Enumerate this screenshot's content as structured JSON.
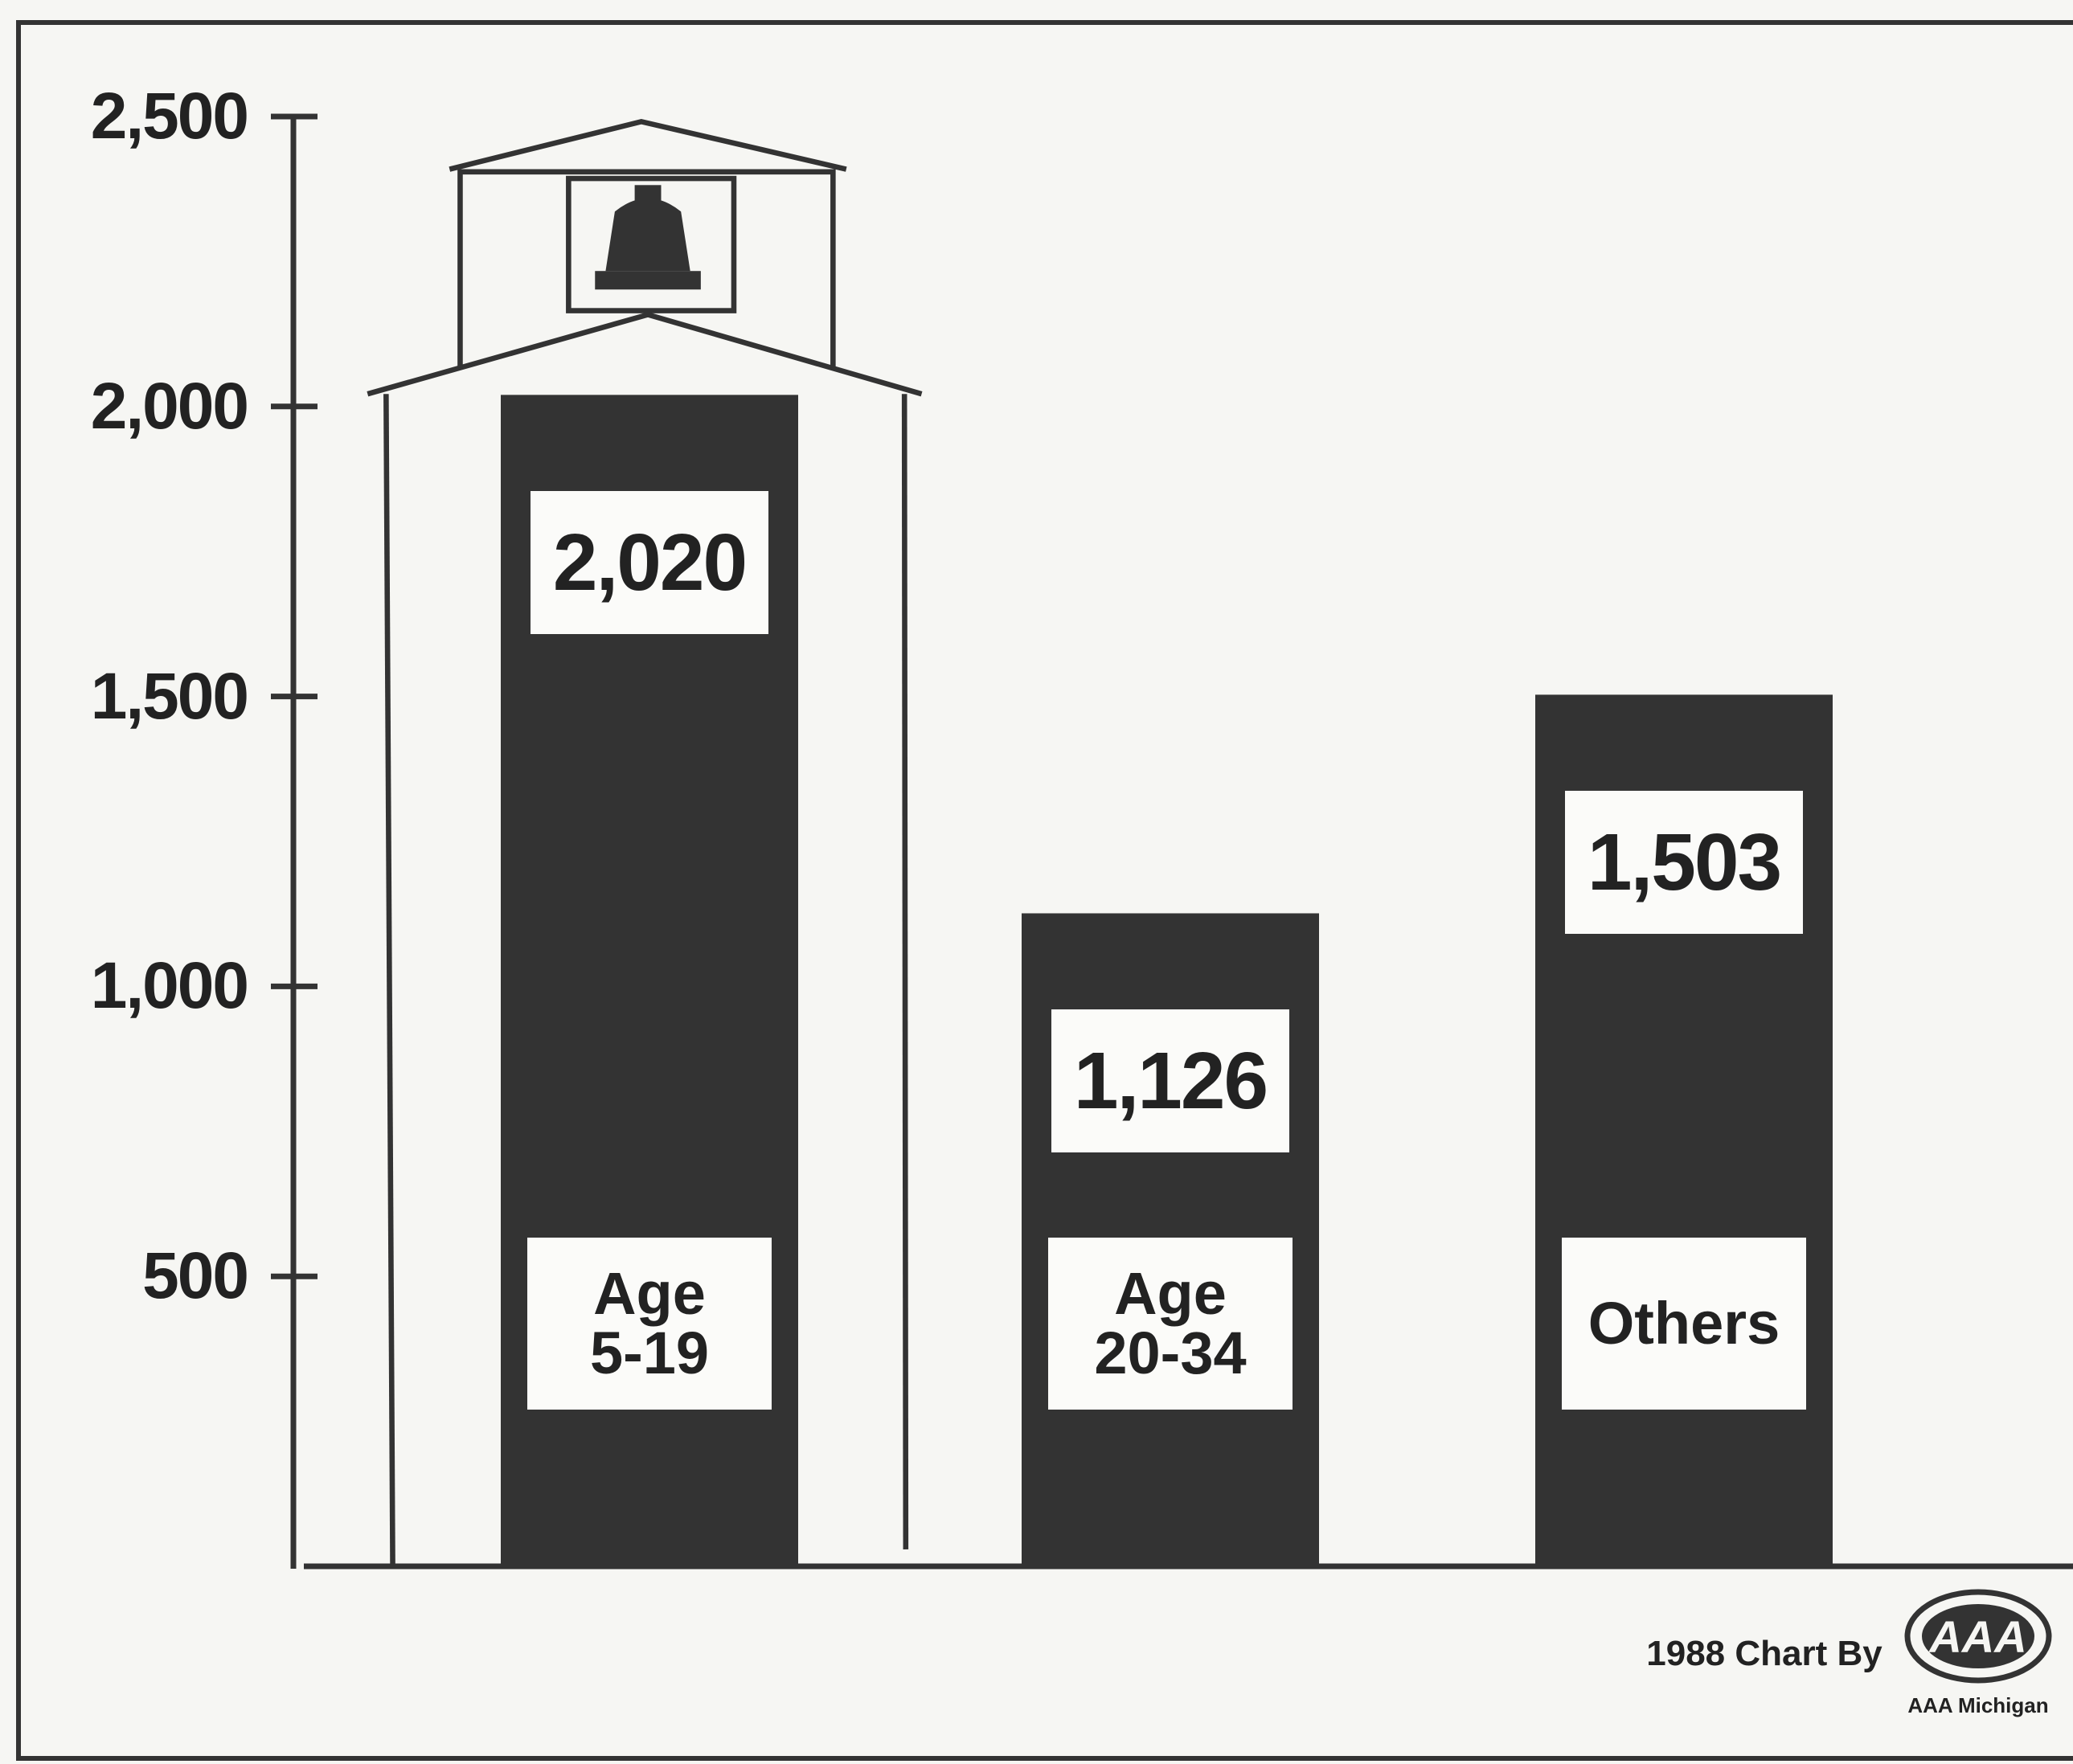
{
  "chart_data": {
    "type": "bar",
    "categories": [
      "Age\n5-19",
      "Age\n20-34",
      "Others"
    ],
    "values": [
      2020,
      1126,
      1503
    ],
    "value_labels": [
      "2,020",
      "1,126",
      "1,503"
    ],
    "color": "#333333",
    "ylim": [
      0,
      2500
    ],
    "yticks": [
      {
        "value": 500,
        "label": "500"
      },
      {
        "value": 1000,
        "label": "1,000"
      },
      {
        "value": 1500,
        "label": "1,500"
      },
      {
        "value": 2000,
        "label": "2,000"
      },
      {
        "value": 2500,
        "label": "2,500"
      }
    ],
    "credit": "1988 Chart By",
    "logo_text": "AAA",
    "logo_caption": "AAA Michigan"
  }
}
